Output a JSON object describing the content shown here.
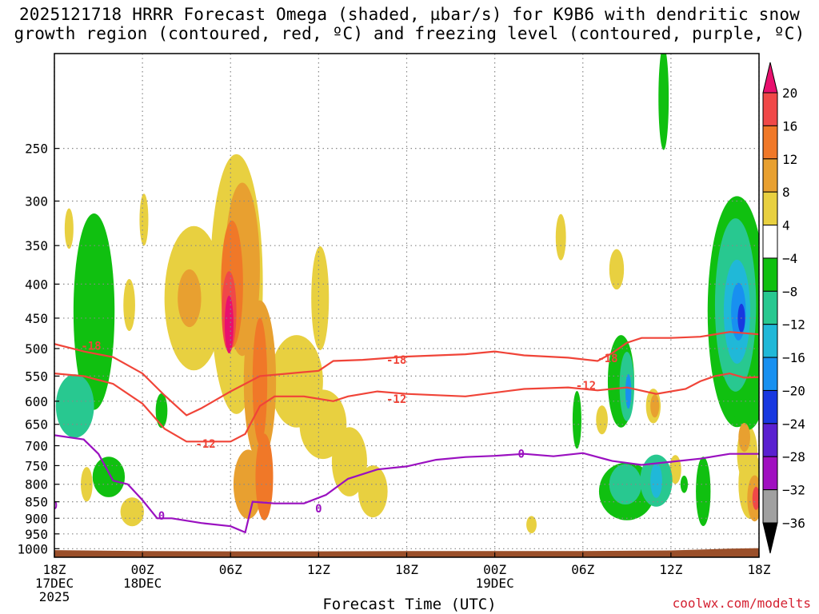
{
  "title_line1": "2025121718 HRRR Forecast Omega (shaded, µbar/s) for K9B6 with dendritic snow",
  "title_line2": "growth region (contoured, red, ºC) and freezing level (contoured, purple, ºC)",
  "xlabel": "Forecast Time (UTC)",
  "credit": "coolwx.com/modelts",
  "colors": {
    "dgz_contour": "#f04438",
    "freezing_contour": "#9a10c0",
    "ground": "#9a4f2a",
    "grid": "#888888"
  },
  "chart_data": {
    "type": "heatmap",
    "title": "2025121718 HRRR Forecast Omega (shaded, µbar/s) for K9B6 with dendritic snow growth region (contoured, red, ºC) and freezing level (contoured, purple, ºC)",
    "xlabel": "Forecast Time (UTC)",
    "ylabel": "",
    "x_range_hours": [
      0,
      48
    ],
    "y_range_hpa": [
      1030,
      180
    ],
    "y_scale": "log",
    "y_ticks": [
      250,
      300,
      350,
      400,
      450,
      500,
      550,
      600,
      650,
      700,
      750,
      800,
      850,
      900,
      950,
      1000
    ],
    "x_ticks": [
      {
        "h": 0,
        "lines": [
          "18Z",
          "17DEC",
          "2025"
        ]
      },
      {
        "h": 6,
        "lines": [
          "00Z",
          "18DEC"
        ]
      },
      {
        "h": 12,
        "lines": [
          "06Z"
        ]
      },
      {
        "h": 18,
        "lines": [
          "12Z"
        ]
      },
      {
        "h": 24,
        "lines": [
          "18Z"
        ]
      },
      {
        "h": 30,
        "lines": [
          "00Z",
          "19DEC"
        ]
      },
      {
        "h": 36,
        "lines": [
          "06Z"
        ]
      },
      {
        "h": 42,
        "lines": [
          "12Z"
        ]
      },
      {
        "h": 48,
        "lines": [
          "18Z"
        ]
      }
    ],
    "grid": true,
    "colorbar": {
      "label_values": [
        20,
        16,
        12,
        8,
        4,
        -4,
        -8,
        -12,
        -16,
        -20,
        -24,
        -28,
        -32,
        -36
      ],
      "bins": [
        {
          "from": 20,
          "to": 24,
          "color": "#e8106e"
        },
        {
          "from": 16,
          "to": 20,
          "color": "#f04848"
        },
        {
          "from": 12,
          "to": 16,
          "color": "#f07828"
        },
        {
          "from": 8,
          "to": 12,
          "color": "#e8a030"
        },
        {
          "from": 4,
          "to": 8,
          "color": "#e8d040"
        },
        {
          "from": -4,
          "to": 4,
          "color": "#ffffff"
        },
        {
          "from": -8,
          "to": -4,
          "color": "#10c010"
        },
        {
          "from": -12,
          "to": -8,
          "color": "#28c890"
        },
        {
          "from": -16,
          "to": -12,
          "color": "#20b8d8"
        },
        {
          "from": -20,
          "to": -16,
          "color": "#1890f0"
        },
        {
          "from": -24,
          "to": -20,
          "color": "#1838e0"
        },
        {
          "from": -28,
          "to": -24,
          "color": "#5a20d0"
        },
        {
          "from": -32,
          "to": -28,
          "color": "#a010c0"
        },
        {
          "from": -36,
          "to": -32,
          "color": "#a0a0a0"
        },
        {
          "from": -40,
          "to": -36,
          "color": "#000000"
        }
      ]
    },
    "omega_blobs": [
      {
        "h": 1.4,
        "p": 610,
        "dh": 1.3,
        "dlogp": 0.11,
        "v": -12
      },
      {
        "h": 2.7,
        "p": 440,
        "dh": 1.4,
        "dlogp": 0.34,
        "v": -8
      },
      {
        "h": 3.7,
        "p": 780,
        "dh": 1.1,
        "dlogp": 0.07,
        "v": -8
      },
      {
        "h": 2.2,
        "p": 800,
        "dh": 0.4,
        "dlogp": 0.06,
        "v": 5
      },
      {
        "h": 1.0,
        "p": 330,
        "dh": 0.3,
        "dlogp": 0.07,
        "v": 5
      },
      {
        "h": 5.3,
        "p": 880,
        "dh": 0.8,
        "dlogp": 0.05,
        "v": 5
      },
      {
        "h": 6.1,
        "p": 320,
        "dh": 0.3,
        "dlogp": 0.09,
        "v": 5
      },
      {
        "h": 5.1,
        "p": 430,
        "dh": 0.4,
        "dlogp": 0.09,
        "v": 5
      },
      {
        "h": 7.3,
        "p": 620,
        "dh": 0.4,
        "dlogp": 0.06,
        "v": -8
      },
      {
        "h": 9.5,
        "p": 420,
        "dh": 2.0,
        "dlogp": 0.25,
        "v": 5
      },
      {
        "h": 9.2,
        "p": 420,
        "dh": 0.8,
        "dlogp": 0.1,
        "v": 8
      },
      {
        "h": 12.4,
        "p": 400,
        "dh": 1.8,
        "dlogp": 0.45,
        "v": 5
      },
      {
        "h": 12.8,
        "p": 380,
        "dh": 1.2,
        "dlogp": 0.3,
        "v": 9
      },
      {
        "h": 12.1,
        "p": 400,
        "dh": 0.75,
        "dlogp": 0.22,
        "v": 13
      },
      {
        "h": 11.9,
        "p": 440,
        "dh": 0.5,
        "dlogp": 0.14,
        "v": 17
      },
      {
        "h": 11.9,
        "p": 460,
        "dh": 0.3,
        "dlogp": 0.1,
        "v": 21
      },
      {
        "h": 14.0,
        "p": 560,
        "dh": 1.1,
        "dlogp": 0.28,
        "v": 9
      },
      {
        "h": 14.0,
        "p": 560,
        "dh": 0.5,
        "dlogp": 0.22,
        "v": 13
      },
      {
        "h": 14.3,
        "p": 780,
        "dh": 0.6,
        "dlogp": 0.15,
        "v": 13
      },
      {
        "h": 13.2,
        "p": 800,
        "dh": 1.0,
        "dlogp": 0.12,
        "v": 9
      },
      {
        "h": 16.5,
        "p": 560,
        "dh": 1.8,
        "dlogp": 0.16,
        "v": 6
      },
      {
        "h": 18.3,
        "p": 650,
        "dh": 1.6,
        "dlogp": 0.12,
        "v": 6
      },
      {
        "h": 18.1,
        "p": 420,
        "dh": 0.6,
        "dlogp": 0.18,
        "v": 5
      },
      {
        "h": 20.1,
        "p": 740,
        "dh": 1.2,
        "dlogp": 0.12,
        "v": 5
      },
      {
        "h": 21.7,
        "p": 820,
        "dh": 1.0,
        "dlogp": 0.09,
        "v": 5
      },
      {
        "h": 34.5,
        "p": 340,
        "dh": 0.35,
        "dlogp": 0.08,
        "v": 5
      },
      {
        "h": 32.5,
        "p": 920,
        "dh": 0.35,
        "dlogp": 0.03,
        "v": 5
      },
      {
        "h": 38.3,
        "p": 380,
        "dh": 0.5,
        "dlogp": 0.07,
        "v": 5
      },
      {
        "h": 35.6,
        "p": 640,
        "dh": 0.3,
        "dlogp": 0.1,
        "v": -8
      },
      {
        "h": 39.0,
        "p": 820,
        "dh": 1.9,
        "dlogp": 0.1,
        "v": -8
      },
      {
        "h": 38.9,
        "p": 800,
        "dh": 1.1,
        "dlogp": 0.07,
        "v": -11
      },
      {
        "h": 38.6,
        "p": 560,
        "dh": 0.9,
        "dlogp": 0.16,
        "v": -8
      },
      {
        "h": 39.0,
        "p": 570,
        "dh": 0.5,
        "dlogp": 0.12,
        "v": -12
      },
      {
        "h": 39.1,
        "p": 580,
        "dh": 0.2,
        "dlogp": 0.06,
        "v": -17
      },
      {
        "h": 37.3,
        "p": 640,
        "dh": 0.4,
        "dlogp": 0.05,
        "v": 5
      },
      {
        "h": 41.0,
        "p": 790,
        "dh": 1.1,
        "dlogp": 0.09,
        "v": -9
      },
      {
        "h": 41.0,
        "p": 790,
        "dh": 0.4,
        "dlogp": 0.06,
        "v": -14
      },
      {
        "h": 40.8,
        "p": 610,
        "dh": 0.5,
        "dlogp": 0.06,
        "v": 5
      },
      {
        "h": 40.9,
        "p": 610,
        "dh": 0.3,
        "dlogp": 0.04,
        "v": 10
      },
      {
        "h": 42.3,
        "p": 760,
        "dh": 0.4,
        "dlogp": 0.05,
        "v": 5
      },
      {
        "h": 42.9,
        "p": 800,
        "dh": 0.25,
        "dlogp": 0.03,
        "v": -8
      },
      {
        "h": 41.5,
        "p": 210,
        "dh": 0.35,
        "dlogp": 0.18,
        "v": -8
      },
      {
        "h": 46.5,
        "p": 440,
        "dh": 2.0,
        "dlogp": 0.4,
        "v": -8
      },
      {
        "h": 46.4,
        "p": 430,
        "dh": 1.4,
        "dlogp": 0.3,
        "v": -11
      },
      {
        "h": 46.5,
        "p": 440,
        "dh": 0.9,
        "dlogp": 0.18,
        "v": -14
      },
      {
        "h": 46.6,
        "p": 440,
        "dh": 0.5,
        "dlogp": 0.1,
        "v": -18
      },
      {
        "h": 46.8,
        "p": 450,
        "dh": 0.25,
        "dlogp": 0.05,
        "v": -22
      },
      {
        "h": 47.2,
        "p": 720,
        "dh": 0.7,
        "dlogp": 0.1,
        "v": 6
      },
      {
        "h": 47.0,
        "p": 680,
        "dh": 0.4,
        "dlogp": 0.05,
        "v": 11
      },
      {
        "h": 47.4,
        "p": 800,
        "dh": 0.8,
        "dlogp": 0.12,
        "v": 6
      },
      {
        "h": 47.7,
        "p": 840,
        "dh": 0.5,
        "dlogp": 0.08,
        "v": 11
      },
      {
        "h": 47.8,
        "p": 840,
        "dh": 0.25,
        "dlogp": 0.04,
        "v": 18
      },
      {
        "h": 47.2,
        "p": 600,
        "dh": 1.0,
        "dlogp": 0.1,
        "v": -8
      },
      {
        "h": 44.2,
        "p": 820,
        "dh": 0.5,
        "dlogp": 0.12,
        "v": -8
      }
    ],
    "dgz_contours": [
      {
        "label": "-18",
        "label_at": {
          "h": 2.5,
          "p": 495
        },
        "points": [
          [
            0,
            492
          ],
          [
            2,
            505
          ],
          [
            4,
            515
          ],
          [
            6,
            545
          ],
          [
            7.5,
            588
          ],
          [
            9,
            630
          ],
          [
            10,
            615
          ],
          [
            12,
            580
          ],
          [
            14,
            550
          ],
          [
            16,
            545
          ],
          [
            18,
            540
          ],
          [
            19,
            522
          ],
          [
            21,
            520
          ],
          [
            24,
            514
          ],
          [
            28,
            510
          ],
          [
            30,
            505
          ],
          [
            32,
            512
          ],
          [
            35,
            516
          ],
          [
            37,
            522
          ],
          [
            38,
            508
          ],
          [
            39,
            490
          ],
          [
            40,
            482
          ],
          [
            42,
            482
          ],
          [
            44,
            480
          ],
          [
            46,
            472
          ],
          [
            48,
            476
          ]
        ]
      },
      {
        "label": "-18",
        "label_at": {
          "h": 23.3,
          "p": 520
        },
        "points": []
      },
      {
        "label": "-18",
        "label_at": {
          "h": 37.7,
          "p": 517
        },
        "points": []
      },
      {
        "label": "-12",
        "label_at": {
          "h": 10.3,
          "p": 695
        },
        "points": [
          [
            0,
            545
          ],
          [
            2,
            550
          ],
          [
            4,
            565
          ],
          [
            6,
            605
          ],
          [
            7.5,
            660
          ],
          [
            9,
            690
          ],
          [
            12,
            690
          ],
          [
            13,
            672
          ],
          [
            14,
            610
          ],
          [
            15,
            590
          ],
          [
            17,
            590
          ],
          [
            19,
            600
          ],
          [
            20,
            590
          ],
          [
            22,
            580
          ],
          [
            24,
            585
          ],
          [
            28,
            590
          ],
          [
            32,
            575
          ],
          [
            35,
            572
          ],
          [
            37,
            578
          ],
          [
            39,
            572
          ],
          [
            41,
            585
          ],
          [
            43,
            575
          ],
          [
            44,
            560
          ],
          [
            45,
            550
          ],
          [
            46,
            545
          ],
          [
            47,
            553
          ],
          [
            48,
            552
          ]
        ]
      },
      {
        "label": "-12",
        "label_at": {
          "h": 23.3,
          "p": 595
        },
        "points": []
      },
      {
        "label": "-12",
        "label_at": {
          "h": 36.2,
          "p": 568
        },
        "points": []
      }
    ],
    "freezing_contours": [
      {
        "label": "0",
        "label_at": {
          "h": 7.3,
          "p": 892
        },
        "points": [
          [
            0,
            675
          ],
          [
            2,
            685
          ],
          [
            3,
            720
          ],
          [
            4,
            790
          ],
          [
            5,
            800
          ],
          [
            6,
            845
          ],
          [
            7,
            900
          ],
          [
            8,
            900
          ],
          [
            10,
            915
          ],
          [
            12,
            925
          ],
          [
            13,
            945
          ],
          [
            13.5,
            850
          ],
          [
            15,
            855
          ],
          [
            17,
            855
          ],
          [
            18.5,
            830
          ],
          [
            20,
            785
          ],
          [
            22,
            760
          ],
          [
            24,
            752
          ],
          [
            26,
            735
          ],
          [
            28,
            728
          ],
          [
            30,
            725
          ],
          [
            32,
            720
          ],
          [
            34,
            726
          ],
          [
            36,
            718
          ],
          [
            38,
            738
          ],
          [
            40,
            748
          ],
          [
            42,
            740
          ],
          [
            44,
            732
          ],
          [
            46,
            720
          ],
          [
            48,
            720
          ]
        ]
      },
      {
        "label": "0",
        "label_at": {
          "h": 18.0,
          "p": 870
        },
        "points": []
      },
      {
        "label": "0",
        "label_at": {
          "h": 31.8,
          "p": 720
        },
        "points": []
      },
      {
        "label": "0",
        "label_at": {
          "h": 0.0,
          "p": 860
        },
        "points": []
      }
    ],
    "ground_pressure_hpa": [
      [
        0,
        1005
      ],
      [
        6,
        1008
      ],
      [
        12,
        1009
      ],
      [
        18,
        1009
      ],
      [
        24,
        1008
      ],
      [
        30,
        1008
      ],
      [
        36,
        1008
      ],
      [
        42,
        1006
      ],
      [
        46,
        1000
      ],
      [
        48,
        998
      ]
    ]
  }
}
